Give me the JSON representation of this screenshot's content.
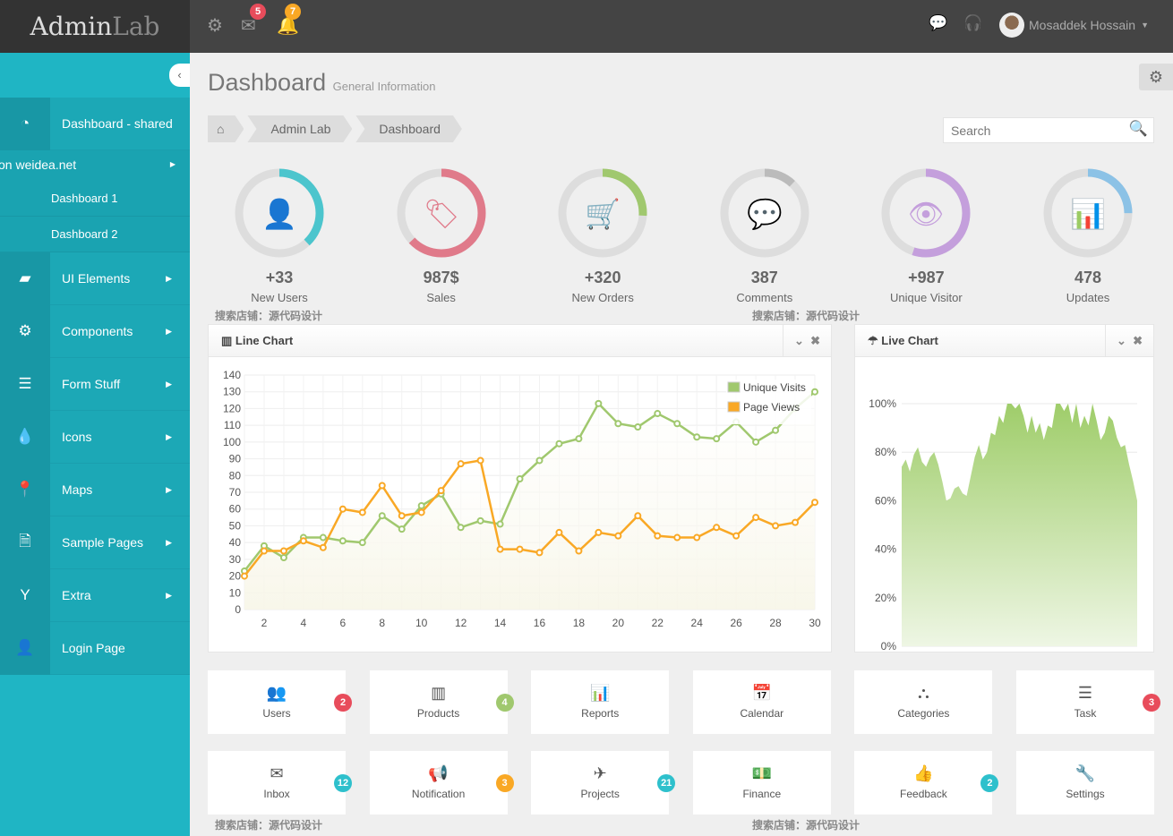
{
  "header": {
    "logo_a": "Admin",
    "logo_b": "Lab",
    "mail_count": "5",
    "bell_count": "7",
    "user_name": "Mosaddek Hossain"
  },
  "sidebar": {
    "items": [
      {
        "label": "Dashboard - shared",
        "icon": "dashboard-icon"
      },
      {
        "label": "UI Elements",
        "icon": "book-icon"
      },
      {
        "label": "Components",
        "icon": "cogs-icon"
      },
      {
        "label": "Form Stuff",
        "icon": "form-icon"
      },
      {
        "label": "Icons",
        "icon": "tint-icon"
      },
      {
        "label": "Maps",
        "icon": "map-marker-icon"
      },
      {
        "label": "Sample Pages",
        "icon": "file-icon"
      },
      {
        "label": "Extra",
        "icon": "glass-icon"
      },
      {
        "label": "Login Page",
        "icon": "user-icon"
      }
    ],
    "overflow_text": "on weidea.net",
    "subitems": [
      "Dashboard 1",
      "Dashboard 2"
    ]
  },
  "page": {
    "title": "Dashboard",
    "subtitle": "General Information",
    "breadcrumb": [
      "Admin Lab",
      "Dashboard"
    ],
    "search_placeholder": "Search"
  },
  "stats": [
    {
      "value": "+33",
      "label": "New Users",
      "color": "#4cc5cd",
      "progress": 0.38,
      "icon": "user-icon",
      "glyph": "👤"
    },
    {
      "value": "987$",
      "label": "Sales",
      "color": "#e07a8a",
      "progress": 0.63,
      "icon": "tags-icon",
      "glyph": "🏷"
    },
    {
      "value": "+320",
      "label": "New Orders",
      "color": "#a0c86e",
      "progress": 0.26,
      "icon": "shopping-cart-icon",
      "glyph": "🛒"
    },
    {
      "value": "387",
      "label": "Comments",
      "color": "#bbbbbb",
      "progress": 0.12,
      "icon": "comments-icon",
      "glyph": "💬"
    },
    {
      "value": "+987",
      "label": "Unique Visitor",
      "color": "#c49fdc",
      "progress": 0.55,
      "icon": "eye-icon",
      "glyph": "👁"
    },
    {
      "value": "478",
      "label": "Updates",
      "color": "#8cc2e6",
      "progress": 0.25,
      "icon": "bar-chart-icon",
      "glyph": "📊"
    }
  ],
  "watermark": "搜索店铺：源代码设计",
  "line_widget": {
    "title": "Line Chart"
  },
  "live_widget": {
    "title": "Live Chart"
  },
  "chart_data": [
    {
      "type": "line",
      "x": [
        1,
        2,
        3,
        4,
        5,
        6,
        7,
        8,
        9,
        10,
        11,
        12,
        13,
        14,
        15,
        16,
        17,
        18,
        19,
        20,
        21,
        22,
        23,
        24,
        25,
        26,
        27,
        28,
        29,
        30
      ],
      "ylim": [
        0,
        140
      ],
      "xlim": [
        1,
        30
      ],
      "grid": true,
      "legend": "top-right",
      "yticks": [
        0,
        10,
        20,
        30,
        40,
        50,
        60,
        70,
        80,
        90,
        100,
        110,
        120,
        130,
        140
      ],
      "xticks": [
        2,
        4,
        6,
        8,
        10,
        12,
        14,
        16,
        18,
        20,
        22,
        24,
        26,
        28,
        30
      ],
      "series": [
        {
          "name": "Unique Visits",
          "color": "#a0c86e",
          "values": [
            23,
            38,
            31,
            43,
            43,
            41,
            40,
            56,
            48,
            62,
            69,
            49,
            53,
            51,
            78,
            89,
            99,
            102,
            123,
            111,
            109,
            117,
            111,
            103,
            102,
            112,
            100,
            107,
            120,
            130
          ]
        },
        {
          "name": "Page Views",
          "color": "#f9a825",
          "values": [
            20,
            35,
            35,
            41,
            37,
            60,
            58,
            74,
            56,
            58,
            71,
            87,
            89,
            36,
            36,
            34,
            46,
            35,
            46,
            44,
            56,
            44,
            43,
            43,
            49,
            44,
            55,
            50,
            52,
            64
          ]
        }
      ]
    },
    {
      "type": "area",
      "ylim": [
        0,
        100
      ],
      "yticks": [
        "0%",
        "20%",
        "40%",
        "60%",
        "80%",
        "100%"
      ],
      "color": "#9fcd6a",
      "values": [
        74,
        77,
        72,
        79,
        82,
        76,
        74,
        78,
        80,
        75,
        68,
        60,
        61,
        65,
        66,
        63,
        62,
        70,
        78,
        83,
        77,
        80,
        88,
        87,
        95,
        92,
        100,
        100,
        98,
        100,
        95,
        88,
        95,
        88,
        92,
        85,
        91,
        90,
        100,
        100,
        97,
        100,
        92,
        100,
        90,
        95,
        91,
        100,
        93,
        85,
        88,
        95,
        93,
        86,
        82,
        83,
        75,
        68,
        60
      ]
    }
  ],
  "tiles": [
    {
      "label": "Users",
      "icon": "users-icon",
      "glyph": "👥",
      "badge": "2",
      "badge_color": "#e84c5b"
    },
    {
      "label": "Products",
      "icon": "barcode-icon",
      "glyph": "▥",
      "badge": "4",
      "badge_color": "#a0c86e"
    },
    {
      "label": "Reports",
      "icon": "bar-chart-icon",
      "glyph": "📊",
      "badge": "",
      "badge_color": ""
    },
    {
      "label": "Calendar",
      "icon": "calendar-icon",
      "glyph": "📅",
      "badge": "",
      "badge_color": ""
    },
    {
      "label": "Categories",
      "icon": "sitemap-icon",
      "glyph": "⛬",
      "badge": "",
      "badge_color": ""
    },
    {
      "label": "Task",
      "icon": "tasks-icon",
      "glyph": "☰",
      "badge": "3",
      "badge_color": "#e84c5b"
    },
    {
      "label": "Inbox",
      "icon": "envelope-icon",
      "glyph": "✉",
      "badge": "12",
      "badge_color": "#2ec0cc"
    },
    {
      "label": "Notification",
      "icon": "bullhorn-icon",
      "glyph": "📢",
      "badge": "3",
      "badge_color": "#f9a825"
    },
    {
      "label": "Projects",
      "icon": "plane-icon",
      "glyph": "✈",
      "badge": "21",
      "badge_color": "#2ec0cc"
    },
    {
      "label": "Finance",
      "icon": "money-icon",
      "glyph": "💵",
      "badge": "",
      "badge_color": ""
    },
    {
      "label": "Feedback",
      "icon": "thumbs-up-icon",
      "glyph": "👍",
      "badge": "2",
      "badge_color": "#2ec0cc"
    },
    {
      "label": "Settings",
      "icon": "wrench-icon",
      "glyph": "🔧",
      "badge": "",
      "badge_color": ""
    }
  ]
}
